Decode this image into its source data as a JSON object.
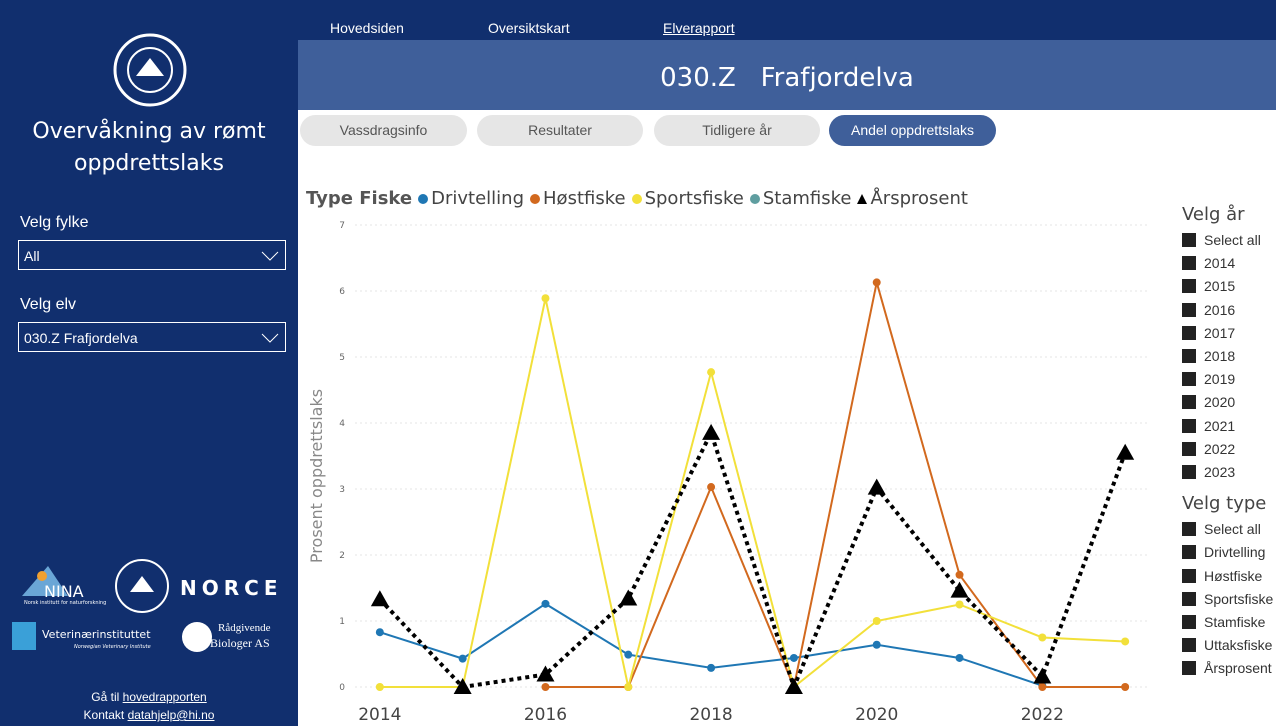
{
  "sidebar": {
    "title": "Overvåkning av rømt oppdrettslaks",
    "filters": [
      {
        "label": "Velg fylke",
        "value": "All"
      },
      {
        "label": "Velg elv",
        "value": "030.Z Frafjordelva"
      }
    ],
    "logos": [
      "NINA",
      "Norsk institutt for naturforskning",
      "NORCE",
      "Veterinærinstituttet",
      "Norwegian Veterinary Institute",
      "Rådgivende",
      "Biologer AS"
    ],
    "footer": {
      "line1_prefix": "Gå til",
      "line1_link": "hovedrapporten",
      "line2_prefix": "Kontakt",
      "line2_link": "datahjelp@hi.no"
    }
  },
  "nav": [
    "Hovedsiden",
    "Oversiktskart",
    "Elverapport"
  ],
  "header": {
    "title": "030.Z   Frafjordelva"
  },
  "tabs": [
    "Vassdragsinfo",
    "Resultater",
    "Tidligere år",
    "Andel oppdrettslaks"
  ],
  "chart_data": {
    "type": "line",
    "legend_title": "Type Fiske",
    "y_label": "Prosent oppdrettslaks",
    "x": [
      2014,
      2015,
      2016,
      2017,
      2018,
      2019,
      2020,
      2021,
      2022,
      2023
    ],
    "xlim": [
      2013.7,
      2023.3
    ],
    "xticks": [
      2014,
      2016,
      2018,
      2020,
      2022
    ],
    "ylim": [
      0,
      7
    ],
    "yticks": [
      0,
      1,
      2,
      3,
      4,
      5,
      6,
      7
    ],
    "grid": true,
    "series": [
      {
        "name": "Drivtelling",
        "color": "#1f77b4",
        "values": [
          0.83,
          0.43,
          1.26,
          0.49,
          0.29,
          0.44,
          0.64,
          0.44,
          0.02,
          null
        ]
      },
      {
        "name": "Høstfiske",
        "color": "#d2691e",
        "values": [
          null,
          null,
          0,
          0,
          3.03,
          0,
          6.13,
          1.7,
          0,
          0
        ]
      },
      {
        "name": "Sportsfiske",
        "color": "#f2e03a",
        "values": [
          0,
          0,
          5.89,
          0,
          4.77,
          0,
          1.0,
          1.25,
          0.75,
          0.69
        ]
      },
      {
        "name": "Stamfiske",
        "color": "#5f9ea0",
        "values": [
          null,
          null,
          null,
          null,
          null,
          null,
          null,
          null,
          null,
          null
        ]
      },
      {
        "name": "Årsprosent",
        "color": "#000000",
        "marker": "triangle",
        "dashed": true,
        "values": [
          1.33,
          0,
          0.19,
          1.34,
          3.85,
          0,
          3.02,
          1.46,
          0.16,
          3.55
        ]
      }
    ]
  },
  "slicers": [
    {
      "title": "Velg år",
      "items": [
        "Select all",
        "2014",
        "2015",
        "2016",
        "2017",
        "2018",
        "2019",
        "2020",
        "2021",
        "2022",
        "2023"
      ]
    },
    {
      "title": "Velg type",
      "items": [
        "Select all",
        "Drivtelling",
        "Høstfiske",
        "Sportsfiske",
        "Stamfiske",
        "Uttaksfiske",
        "Årsprosent"
      ]
    }
  ]
}
